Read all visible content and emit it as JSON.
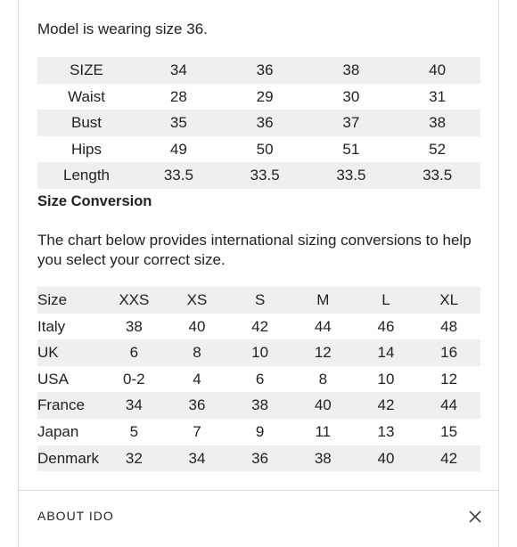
{
  "model_note": "Model is wearing size 36.",
  "measurements": {
    "rows": [
      [
        "SIZE",
        "34",
        "36",
        "38",
        "40"
      ],
      [
        "Waist",
        "28",
        "29",
        "30",
        "31"
      ],
      [
        "Bust",
        "35",
        "36",
        "37",
        "38"
      ],
      [
        "Hips",
        "49",
        "50",
        "51",
        "52"
      ],
      [
        "Length",
        "33.5",
        "33.5",
        "33.5",
        "33.5"
      ]
    ]
  },
  "size_conversion": {
    "heading": "Size Conversion",
    "intro": "The chart below provides international sizing conversions to help you select your correct size.",
    "rows": [
      [
        "Size",
        "XXS",
        "XS",
        "S",
        "M",
        "L",
        "XL"
      ],
      [
        "Italy",
        "38",
        "40",
        "42",
        "44",
        "46",
        "48"
      ],
      [
        "UK",
        "6",
        "8",
        "10",
        "12",
        "14",
        "16"
      ],
      [
        "USA",
        "0-2",
        "4",
        "6",
        "8",
        "10",
        "12"
      ],
      [
        "France",
        "34",
        "36",
        "38",
        "40",
        "42",
        "44"
      ],
      [
        "Japan",
        "5",
        "7",
        "9",
        "11",
        "13",
        "15"
      ],
      [
        "Denmark",
        "32",
        "34",
        "36",
        "38",
        "40",
        "42"
      ]
    ]
  },
  "next_section": {
    "label": "ABOUT IDO",
    "icon": "close-icon"
  }
}
